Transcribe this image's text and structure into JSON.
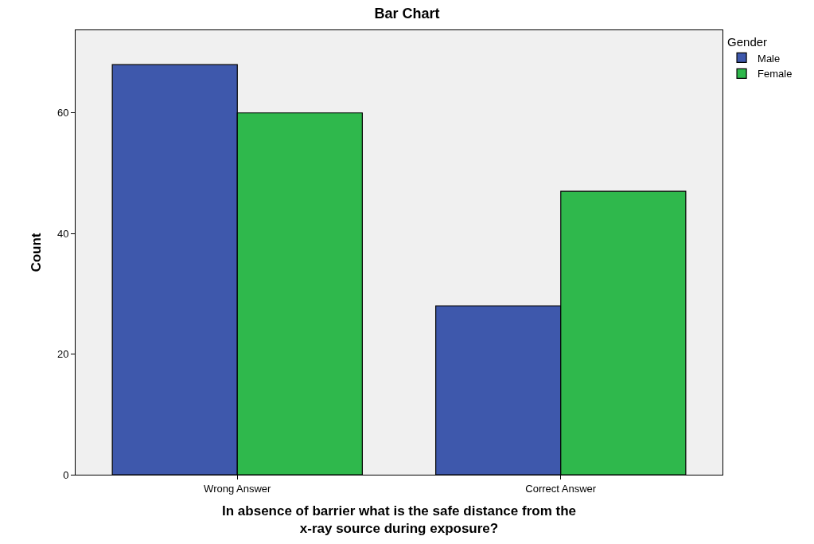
{
  "chart_data": {
    "type": "bar",
    "title": "Bar Chart",
    "xlabel": "In absence of barrier what is the safe distance from the\nx-ray source during exposure?",
    "ylabel": "Count",
    "legend_title": "Gender",
    "categories": [
      "Wrong Answer",
      "Correct Answer"
    ],
    "series": [
      {
        "name": "Male",
        "color": "#3e58ac",
        "values": [
          68,
          28
        ]
      },
      {
        "name": "Female",
        "color": "#2fb84c",
        "values": [
          60,
          47
        ]
      }
    ],
    "ylim": [
      0,
      73.7
    ],
    "yticks": [
      0,
      20,
      40,
      60
    ],
    "grid": false,
    "legend": "top right"
  }
}
